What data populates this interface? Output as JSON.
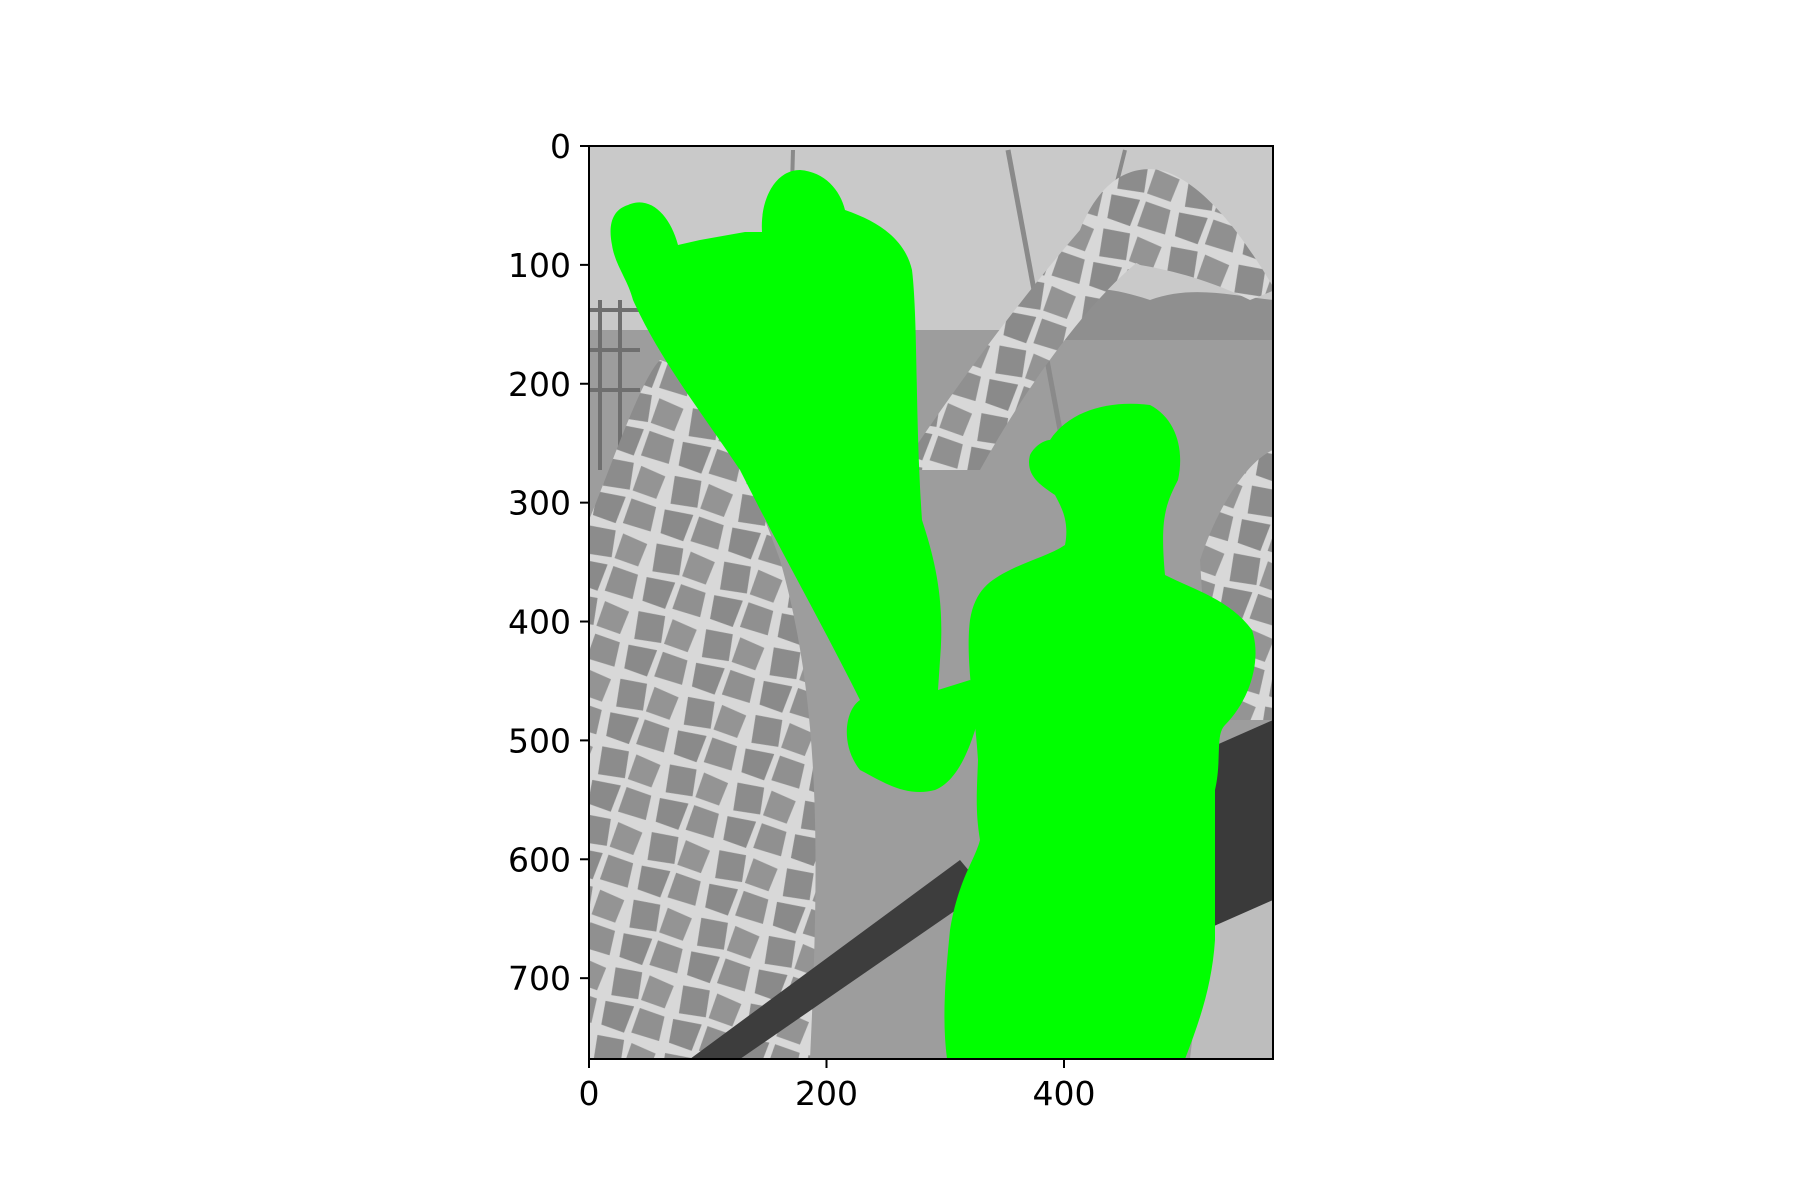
{
  "figure": {
    "image_description_icon": "grayscale-photo-with-green-mask-icon",
    "mask_color": "#00ff00",
    "background": "#ffffff"
  },
  "axes": {
    "x_ticks": [
      {
        "value": 0,
        "label": "0"
      },
      {
        "value": 200,
        "label": "200"
      },
      {
        "value": 400,
        "label": "400"
      }
    ],
    "y_ticks": [
      {
        "value": 0,
        "label": "0"
      },
      {
        "value": 100,
        "label": "100"
      },
      {
        "value": 200,
        "label": "200"
      },
      {
        "value": 300,
        "label": "300"
      },
      {
        "value": 400,
        "label": "400"
      },
      {
        "value": 500,
        "label": "500"
      },
      {
        "value": 600,
        "label": "600"
      },
      {
        "value": 700,
        "label": "700"
      }
    ],
    "xlim": [
      0,
      576
    ],
    "ylim": [
      768,
      0
    ]
  }
}
